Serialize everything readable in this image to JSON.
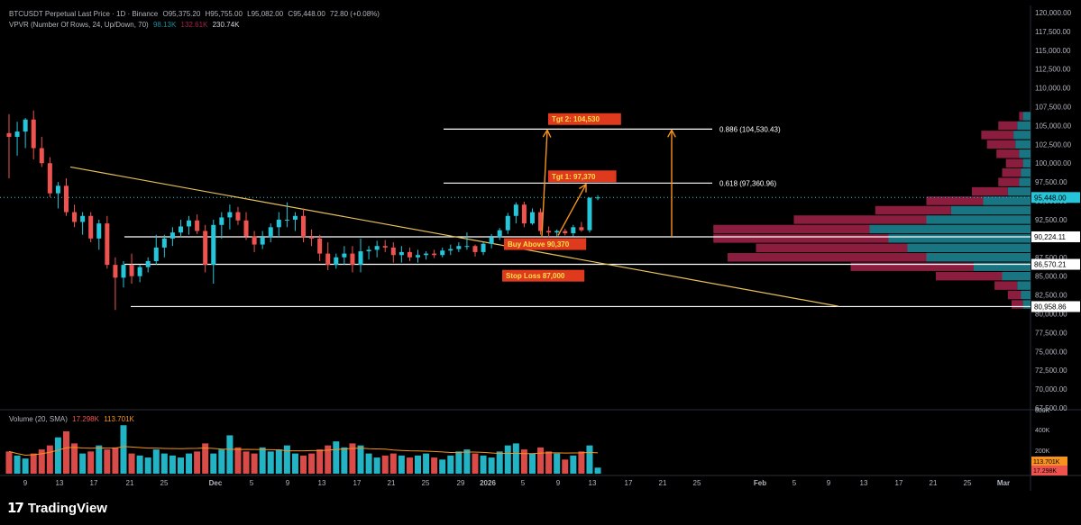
{
  "header": {
    "symbol_line": "BTCUSDT Perpetual Last Price · 1D · Binance",
    "ohlc": {
      "o": "O95,375.20",
      "h": "H95,755.00",
      "l": "L95,082.00",
      "c": "C95,448.00",
      "chg": "72.80 (+0.08%)"
    },
    "vpvr_label": "VPVR (Number Of Rows, 24, Up/Down, 70)",
    "vpvr_up": "98.13K",
    "vpvr_down": "132.61K",
    "vpvr_total": "230.74K",
    "volume_label": "Volume (20, SMA)",
    "volume_v1": "17.298K",
    "volume_v2": "113.701K"
  },
  "branding": {
    "name": "TradingView",
    "logo_icon": "tradingview-logo-icon"
  },
  "colors": {
    "up": "#26c6da",
    "down": "#ef5350",
    "bg": "#000000",
    "accent": "#f7931a",
    "trend": "#e8c15a",
    "vp_up": "#1f8a99",
    "vp_down": "#a3234a",
    "label_bg": "#e03a1e",
    "label_text": "#fde047"
  },
  "chart_data": {
    "type": "candlestick",
    "y_axis": {
      "min": 67500,
      "max": 120000,
      "ticks": [
        "120,000.00",
        "117,500.00",
        "115,000.00",
        "112,500.00",
        "110,000.00",
        "107,500.00",
        "105,000.00",
        "102,500.00",
        "100,000.00",
        "97,500.00",
        "95,000.00",
        "92,500.00",
        "90,000.00",
        "87,500.00",
        "85,000.00",
        "82,500.00",
        "80,000.00",
        "77,500.00",
        "75,000.00",
        "72,500.00",
        "70,000.00",
        "67,500.00"
      ]
    },
    "x_axis": {
      "labels": [
        "9",
        "13",
        "17",
        "21",
        "25",
        "Dec",
        "5",
        "9",
        "13",
        "17",
        "21",
        "25",
        "29",
        "2026",
        "5",
        "9",
        "13",
        "17",
        "21",
        "25",
        "Feb",
        "5",
        "9",
        "13",
        "17",
        "21",
        "25",
        "Mar"
      ]
    },
    "price_flags": [
      {
        "label": "95,448.00",
        "value": 95448,
        "color": "#26c6da"
      },
      {
        "label": "90,224.11",
        "value": 90224.11,
        "color": "#ffffff"
      },
      {
        "label": "86,570.21",
        "value": 86570.21,
        "color": "#ffffff"
      },
      {
        "label": "80,958.86",
        "value": 80958.86,
        "color": "#ffffff"
      }
    ],
    "fib_levels": [
      {
        "label": "0.886 (104,530.43)",
        "value": 104530.43
      },
      {
        "label": "0.618 (97,360.96)",
        "value": 97360.96
      }
    ],
    "horizontal_levels": [
      90224.11,
      86570.21,
      80958.86
    ],
    "annotations": [
      {
        "text": "Tgt 2: 104,530",
        "value": 105800
      },
      {
        "text": "Tgt 1: 97,370",
        "value": 98200
      },
      {
        "text": "Buy Above 90,370",
        "value": 89200
      },
      {
        "text": "Stop Loss 87,000",
        "value": 85000
      }
    ],
    "candles": [
      [
        104000,
        106500,
        98000,
        103500
      ],
      [
        103500,
        105500,
        101000,
        104200
      ],
      [
        104200,
        106000,
        102000,
        105800
      ],
      [
        105800,
        107000,
        100500,
        102000
      ],
      [
        102000,
        103500,
        99500,
        100000
      ],
      [
        100000,
        100800,
        95500,
        96000
      ],
      [
        96000,
        97500,
        94000,
        97000
      ],
      [
        97000,
        98000,
        93000,
        93500
      ],
      [
        93500,
        94500,
        91500,
        92200
      ],
      [
        92200,
        93500,
        90500,
        93000
      ],
      [
        93000,
        93500,
        89500,
        90000
      ],
      [
        90000,
        92500,
        88500,
        92000
      ],
      [
        92000,
        93000,
        86000,
        86500
      ],
      [
        86500,
        87500,
        80500,
        84800
      ],
      [
        84800,
        87000,
        83500,
        86500
      ],
      [
        86500,
        88000,
        84000,
        85000
      ],
      [
        85000,
        86500,
        84200,
        86200
      ],
      [
        86200,
        87500,
        85500,
        87000
      ],
      [
        87000,
        90500,
        86500,
        88800
      ],
      [
        88800,
        90500,
        87500,
        90000
      ],
      [
        90000,
        91500,
        89000,
        90800
      ],
      [
        90800,
        92500,
        90200,
        91600
      ],
      [
        91600,
        93000,
        90500,
        92400
      ],
      [
        92400,
        93200,
        90600,
        91000
      ],
      [
        91000,
        91800,
        85500,
        86500
      ],
      [
        86500,
        92500,
        84000,
        91800
      ],
      [
        91800,
        93500,
        90000,
        92800
      ],
      [
        92800,
        94500,
        91200,
        93500
      ],
      [
        93500,
        94200,
        91800,
        92400
      ],
      [
        92400,
        93500,
        89800,
        90300
      ],
      [
        90300,
        91000,
        88200,
        89200
      ],
      [
        89200,
        91000,
        88600,
        90200
      ],
      [
        90200,
        92000,
        89500,
        91500
      ],
      [
        91500,
        93500,
        90200,
        92500
      ],
      [
        92500,
        94800,
        91500,
        92500
      ],
      [
        92500,
        93500,
        91000,
        93000
      ],
      [
        93000,
        94000,
        89500,
        90200
      ],
      [
        90200,
        91200,
        89000,
        90000
      ],
      [
        90000,
        90500,
        87000,
        88000
      ],
      [
        88000,
        89500,
        85800,
        86500
      ],
      [
        86500,
        88000,
        86000,
        87500
      ],
      [
        87500,
        89000,
        86500,
        88000
      ],
      [
        88000,
        89000,
        85500,
        86500
      ],
      [
        86500,
        90000,
        85500,
        88300
      ],
      [
        88300,
        89000,
        87200,
        88500
      ],
      [
        88500,
        89700,
        87500,
        89000
      ],
      [
        89000,
        89800,
        88200,
        88800
      ],
      [
        88800,
        89500,
        86800,
        87800
      ],
      [
        87800,
        89000,
        86800,
        88200
      ],
      [
        88200,
        88800,
        87000,
        87500
      ],
      [
        87500,
        88500,
        86800,
        87800
      ],
      [
        87800,
        88300,
        87200,
        88000
      ],
      [
        88000,
        88500,
        87400,
        87800
      ],
      [
        87800,
        88800,
        87500,
        88400
      ],
      [
        88400,
        89200,
        87800,
        88600
      ],
      [
        88600,
        89500,
        88200,
        89000
      ],
      [
        89000,
        90800,
        88500,
        89000
      ],
      [
        89000,
        89200,
        87600,
        88200
      ],
      [
        88200,
        89500,
        87800,
        89300
      ],
      [
        89300,
        90600,
        88700,
        90200
      ],
      [
        90200,
        91400,
        89800,
        91100
      ],
      [
        91100,
        93400,
        90600,
        93000
      ],
      [
        93000,
        94800,
        92000,
        94500
      ],
      [
        94500,
        94900,
        91500,
        92000
      ],
      [
        92000,
        94000,
        91800,
        93500
      ],
      [
        93500,
        94000,
        90500,
        91000
      ],
      [
        91000,
        91600,
        90200,
        90800
      ],
      [
        90800,
        91200,
        90300,
        91000
      ],
      [
        91000,
        91300,
        90400,
        90700
      ],
      [
        90700,
        91800,
        90300,
        91500
      ],
      [
        91500,
        92200,
        90900,
        91100
      ],
      [
        91100,
        95500,
        90800,
        95400
      ],
      [
        95375.2,
        95755,
        95082,
        95448
      ]
    ],
    "volume": [
      22,
      18,
      15,
      20,
      24,
      28,
      36,
      42,
      30,
      20,
      22,
      28,
      24,
      26,
      48,
      20,
      18,
      16,
      24,
      20,
      18,
      16,
      20,
      22,
      30,
      20,
      24,
      38,
      26,
      22,
      20,
      26,
      22,
      24,
      28,
      20,
      18,
      20,
      24,
      28,
      32,
      26,
      30,
      28,
      20,
      16,
      18,
      20,
      18,
      16,
      18,
      20,
      16,
      14,
      18,
      22,
      24,
      20,
      18,
      16,
      22,
      28,
      30,
      24,
      20,
      26,
      22,
      20,
      14,
      18,
      22,
      28,
      6
    ],
    "vpvr": [
      {
        "price": 106250,
        "up": 8,
        "down": 4
      },
      {
        "price": 105000,
        "up": 14,
        "down": 20
      },
      {
        "price": 103750,
        "up": 18,
        "down": 34
      },
      {
        "price": 102500,
        "up": 16,
        "down": 30
      },
      {
        "price": 101250,
        "up": 12,
        "down": 24
      },
      {
        "price": 100000,
        "up": 8,
        "down": 18
      },
      {
        "price": 98750,
        "up": 10,
        "down": 20
      },
      {
        "price": 97500,
        "up": 12,
        "down": 22
      },
      {
        "price": 96250,
        "up": 24,
        "down": 38
      },
      {
        "price": 95000,
        "up": 50,
        "down": 60
      },
      {
        "price": 93750,
        "up": 84,
        "down": 80
      },
      {
        "price": 92500,
        "up": 110,
        "down": 140
      },
      {
        "price": 91250,
        "up": 170,
        "down": 165
      },
      {
        "price": 90000,
        "up": 150,
        "down": 185
      },
      {
        "price": 88750,
        "up": 130,
        "down": 160
      },
      {
        "price": 87500,
        "up": 110,
        "down": 210
      },
      {
        "price": 86250,
        "up": 60,
        "down": 130
      },
      {
        "price": 85000,
        "up": 30,
        "down": 70
      },
      {
        "price": 83750,
        "up": 14,
        "down": 24
      },
      {
        "price": 82500,
        "up": 10,
        "down": 14
      },
      {
        "price": 81250,
        "up": 8,
        "down": 12
      }
    ]
  }
}
